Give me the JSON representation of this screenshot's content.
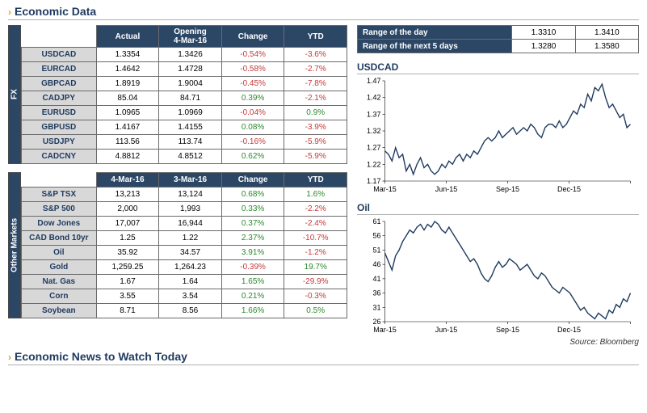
{
  "title_main": "Economic Data",
  "title_bottom": "Economic News to Watch Today",
  "source_label": "Source: Bloomberg",
  "colors": {
    "header_bg": "#2c4766",
    "header_fg": "#ffffff",
    "rowhdr_bg": "#d8d8d8",
    "pos": "#2a8a2a",
    "neg": "#c43a3a",
    "title": "#1f3a5f",
    "chevron": "#d89b3a",
    "border": "#6a6a6a",
    "line": "#1f3a5f"
  },
  "fx": {
    "side_label": "FX",
    "headers": [
      "Actual",
      "Opening\n4-Mar-16",
      "Change",
      "YTD"
    ],
    "rows": [
      {
        "name": "USDCAD",
        "actual": "1.3354",
        "open": "1.3426",
        "chg": "-0.54%",
        "chg_sign": -1,
        "ytd": "-3.6%",
        "ytd_sign": -1
      },
      {
        "name": "EURCAD",
        "actual": "1.4642",
        "open": "1.4728",
        "chg": "-0.58%",
        "chg_sign": -1,
        "ytd": "-2.7%",
        "ytd_sign": -1
      },
      {
        "name": "GBPCAD",
        "actual": "1.8919",
        "open": "1.9004",
        "chg": "-0.45%",
        "chg_sign": -1,
        "ytd": "-7.8%",
        "ytd_sign": -1
      },
      {
        "name": "CADJPY",
        "actual": "85.04",
        "open": "84.71",
        "chg": "0.39%",
        "chg_sign": 1,
        "ytd": "-2.1%",
        "ytd_sign": -1
      },
      {
        "name": "EURUSD",
        "actual": "1.0965",
        "open": "1.0969",
        "chg": "-0.04%",
        "chg_sign": -1,
        "ytd": "0.9%",
        "ytd_sign": 1
      },
      {
        "name": "GBPUSD",
        "actual": "1.4167",
        "open": "1.4155",
        "chg": "0.08%",
        "chg_sign": 1,
        "ytd": "-3.9%",
        "ytd_sign": -1
      },
      {
        "name": "USDJPY",
        "actual": "113.56",
        "open": "113.74",
        "chg": "-0.16%",
        "chg_sign": -1,
        "ytd": "-5.9%",
        "ytd_sign": -1
      },
      {
        "name": "CADCNY",
        "actual": "4.8812",
        "open": "4.8512",
        "chg": "0.62%",
        "chg_sign": 1,
        "ytd": "-5.9%",
        "ytd_sign": -1
      }
    ]
  },
  "other": {
    "side_label": "Other Markets",
    "headers": [
      "4-Mar-16",
      "3-Mar-16",
      "Change",
      "YTD"
    ],
    "rows": [
      {
        "name": "S&P TSX",
        "d1": "13,213",
        "d0": "13,124",
        "chg": "0.68%",
        "chg_sign": 1,
        "ytd": "1.6%",
        "ytd_sign": 1
      },
      {
        "name": "S&P 500",
        "d1": "2,000",
        "d0": "1,993",
        "chg": "0.33%",
        "chg_sign": 1,
        "ytd": "-2.2%",
        "ytd_sign": -1
      },
      {
        "name": "Dow Jones",
        "d1": "17,007",
        "d0": "16,944",
        "chg": "0.37%",
        "chg_sign": 1,
        "ytd": "-2.4%",
        "ytd_sign": -1
      },
      {
        "name": "CAD Bond 10yr",
        "d1": "1.25",
        "d0": "1.22",
        "chg": "2.37%",
        "chg_sign": 1,
        "ytd": "-10.7%",
        "ytd_sign": -1
      },
      {
        "name": "Oil",
        "d1": "35.92",
        "d0": "34.57",
        "chg": "3.91%",
        "chg_sign": 1,
        "ytd": "-1.2%",
        "ytd_sign": -1
      },
      {
        "name": "Gold",
        "d1": "1,259.25",
        "d0": "1,264.23",
        "chg": "-0.39%",
        "chg_sign": -1,
        "ytd": "19.7%",
        "ytd_sign": 1
      },
      {
        "name": "Nat. Gas",
        "d1": "1.67",
        "d0": "1.64",
        "chg": "1.65%",
        "chg_sign": 1,
        "ytd": "-29.9%",
        "ytd_sign": -1
      },
      {
        "name": "Corn",
        "d1": "3.55",
        "d0": "3.54",
        "chg": "0.21%",
        "chg_sign": 1,
        "ytd": "-0.3%",
        "ytd_sign": -1
      },
      {
        "name": "Soybean",
        "d1": "8.71",
        "d0": "8.56",
        "chg": "1.66%",
        "chg_sign": 1,
        "ytd": "0.5%",
        "ytd_sign": 1
      }
    ]
  },
  "ranges": {
    "rows": [
      {
        "label": "Range of the day",
        "low": "1.3310",
        "high": "1.3410"
      },
      {
        "label": "Range of the next 5 days",
        "low": "1.3280",
        "high": "1.3580"
      }
    ]
  },
  "chart1": {
    "title": "USDCAD",
    "type": "line",
    "ylim": [
      1.17,
      1.47
    ],
    "yticks": [
      1.17,
      1.22,
      1.27,
      1.32,
      1.37,
      1.42,
      1.47
    ],
    "xlabels": [
      "Mar-15",
      "Jun-15",
      "Sep-15",
      "Dec-15",
      ""
    ],
    "series": [
      1.26,
      1.25,
      1.23,
      1.27,
      1.24,
      1.25,
      1.2,
      1.22,
      1.19,
      1.22,
      1.24,
      1.21,
      1.22,
      1.2,
      1.19,
      1.2,
      1.22,
      1.21,
      1.23,
      1.22,
      1.24,
      1.25,
      1.23,
      1.25,
      1.24,
      1.26,
      1.25,
      1.27,
      1.29,
      1.3,
      1.29,
      1.3,
      1.32,
      1.3,
      1.31,
      1.32,
      1.33,
      1.31,
      1.32,
      1.33,
      1.32,
      1.34,
      1.33,
      1.31,
      1.3,
      1.33,
      1.34,
      1.34,
      1.33,
      1.35,
      1.33,
      1.34,
      1.36,
      1.38,
      1.37,
      1.4,
      1.39,
      1.43,
      1.41,
      1.45,
      1.44,
      1.46,
      1.42,
      1.39,
      1.4,
      1.38,
      1.36,
      1.37,
      1.33,
      1.34
    ],
    "line_color": "#1f3a5f",
    "line_width": 1.4,
    "label_fontsize": 9
  },
  "chart2": {
    "title": "Oil",
    "type": "line",
    "ylim": [
      26,
      61
    ],
    "yticks": [
      26,
      31,
      36,
      41,
      46,
      51,
      56,
      61
    ],
    "xlabels": [
      "Mar-15",
      "Jun-15",
      "Sep-15",
      "Dec-15",
      ""
    ],
    "series": [
      50,
      47,
      44,
      49,
      51,
      54,
      56,
      58,
      57,
      59,
      60,
      58,
      60,
      59,
      61,
      60,
      58,
      57,
      59,
      57,
      55,
      53,
      51,
      49,
      47,
      48,
      46,
      43,
      41,
      40,
      42,
      45,
      47,
      45,
      46,
      48,
      47,
      46,
      44,
      45,
      46,
      44,
      42,
      41,
      43,
      42,
      40,
      38,
      37,
      36,
      38,
      37,
      36,
      34,
      32,
      30,
      31,
      29,
      28,
      27,
      29,
      28,
      27,
      30,
      29,
      32,
      31,
      34,
      33,
      36
    ],
    "line_color": "#1f3a5f",
    "line_width": 1.4,
    "label_fontsize": 9
  }
}
